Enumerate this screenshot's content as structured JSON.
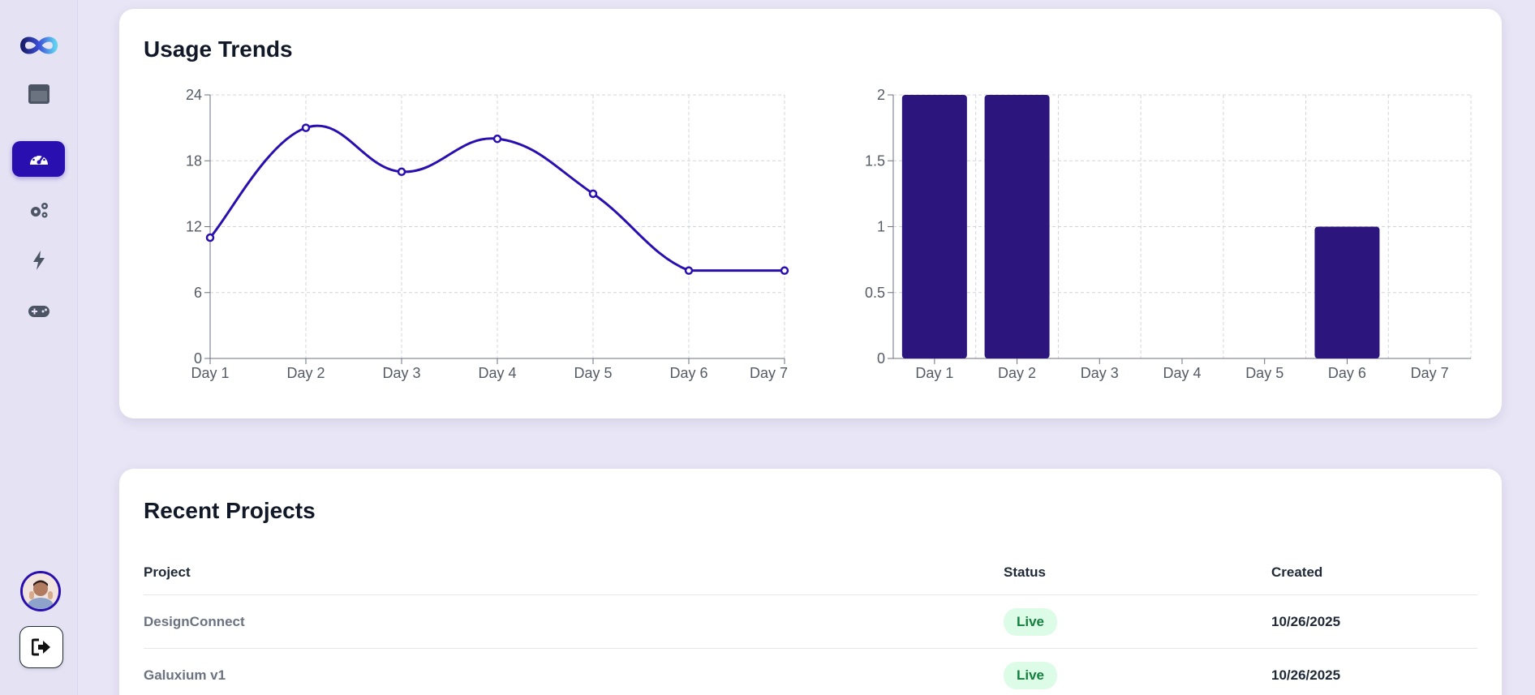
{
  "usage": {
    "title": "Usage Trends"
  },
  "chart_data": [
    {
      "type": "line",
      "title": "",
      "xlabel": "",
      "ylabel": "",
      "categories": [
        "Day 1",
        "Day 2",
        "Day 3",
        "Day 4",
        "Day 5",
        "Day 6",
        "Day 7"
      ],
      "values": [
        11,
        21,
        17,
        20,
        15,
        8,
        8
      ],
      "ylim": [
        0,
        24
      ],
      "yticks": [
        "0",
        "6",
        "12",
        "18",
        "24"
      ],
      "grid": true,
      "color": "#2a0fb0"
    },
    {
      "type": "bar",
      "title": "",
      "xlabel": "",
      "ylabel": "",
      "categories": [
        "Day 1",
        "Day 2",
        "Day 3",
        "Day 4",
        "Day 5",
        "Day 6",
        "Day 7"
      ],
      "values": [
        2,
        2,
        0,
        0,
        0,
        1,
        0
      ],
      "ylim": [
        0,
        2
      ],
      "yticks": [
        "0",
        "0.5",
        "1",
        "1.5",
        "2"
      ],
      "grid": true,
      "color": "#2c157d"
    }
  ],
  "projects": {
    "title": "Recent Projects",
    "columns": {
      "project": "Project",
      "status": "Status",
      "created": "Created"
    },
    "rows": [
      {
        "project": "DesignConnect",
        "status": "Live",
        "created": "10/26/2025"
      },
      {
        "project": "Galuxium v1",
        "status": "Live",
        "created": "10/26/2025"
      }
    ]
  },
  "sidebar": {
    "items": [
      {
        "icon": "window-icon"
      },
      {
        "icon": "dashboard-gauge-icon",
        "active": true
      },
      {
        "icon": "gears-icon"
      },
      {
        "icon": "bolt-icon"
      },
      {
        "icon": "gamepad-icon"
      }
    ],
    "logo_icon": "infinity-logo-icon",
    "avatar_icon": "user-avatar",
    "logout_icon": "logout-icon"
  },
  "colors": {
    "accent": "#2a0fb0",
    "bar": "#2c157d",
    "background": "#e8e5f6",
    "live_badge_bg": "#dcfce7",
    "live_badge_text": "#15803d"
  }
}
